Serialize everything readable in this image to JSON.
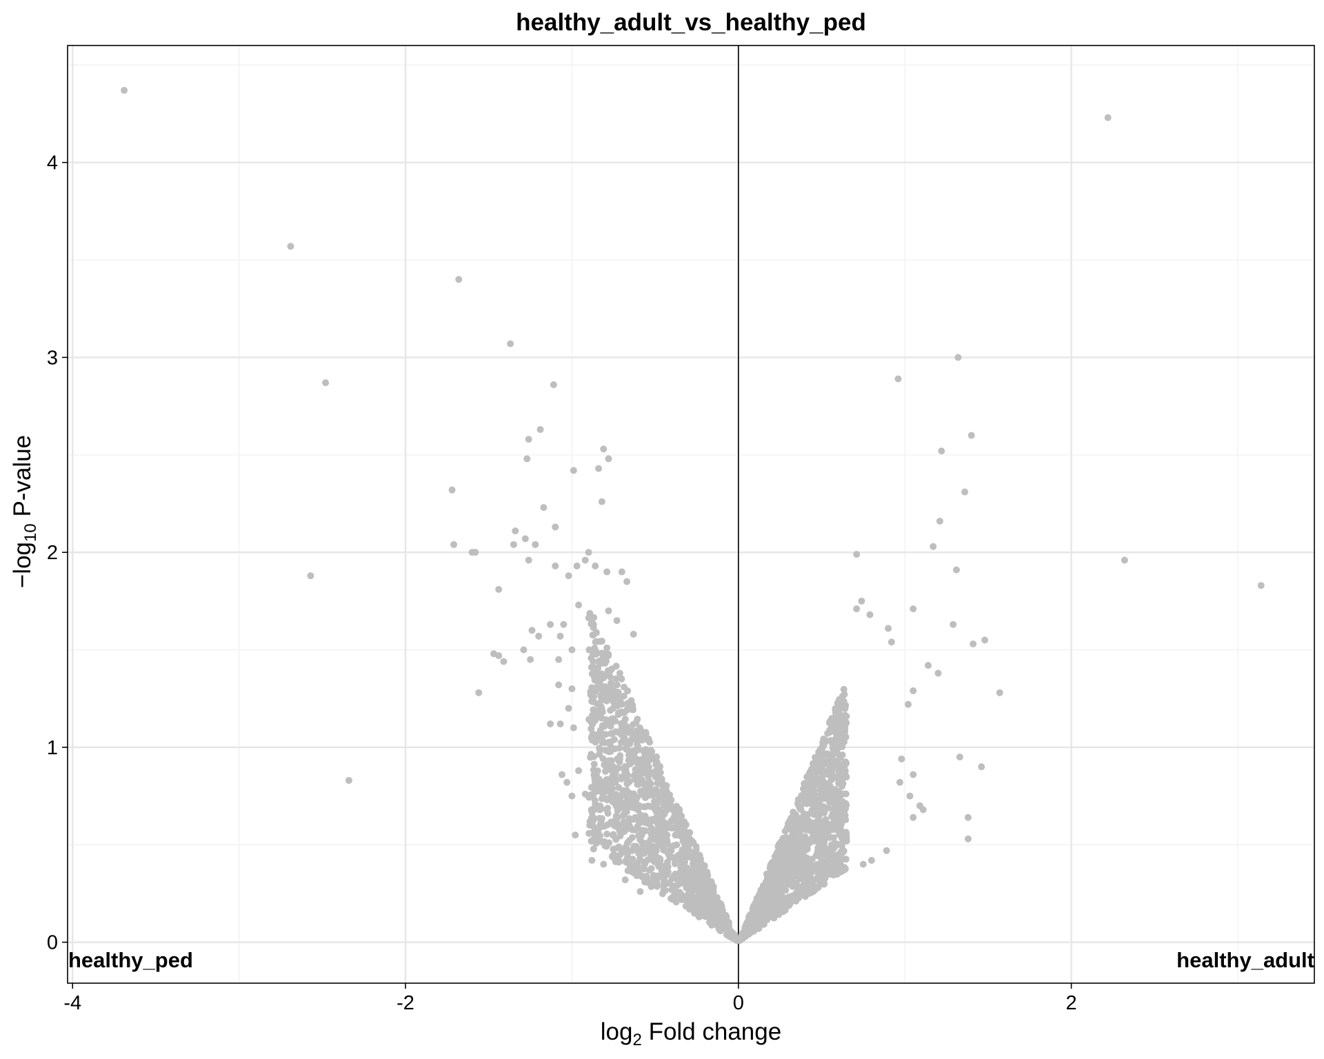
{
  "chart_data": {
    "type": "scatter",
    "title": "healthy_adult_vs_healthy_ped",
    "xlabel": {
      "prefix": "log",
      "sub": "2",
      "suffix": " Fold change"
    },
    "ylabel": {
      "prefix": "−log",
      "sub": "10",
      "suffix": " P-value"
    },
    "xlim": [
      -4.03,
      3.46
    ],
    "ylim": [
      -0.21,
      4.6
    ],
    "x_ticks": [
      -4,
      -2,
      0,
      2
    ],
    "x_tick_labels": [
      "-4",
      "-2",
      "0",
      "2"
    ],
    "y_ticks": [
      0,
      1,
      2,
      3,
      4
    ],
    "y_tick_labels": [
      "0",
      "1",
      "2",
      "3",
      "4"
    ],
    "grid": true,
    "vline_x": 0,
    "point_color": "#bebebe",
    "group_left": "healthy_ped",
    "group_right": "healthy_adult",
    "points": [
      [
        -3.69,
        4.37
      ],
      [
        -2.69,
        3.57
      ],
      [
        -2.48,
        2.87
      ],
      [
        -2.57,
        1.88
      ],
      [
        -2.34,
        0.83
      ],
      [
        -1.68,
        3.4
      ],
      [
        -1.72,
        2.32
      ],
      [
        -1.71,
        2.04
      ],
      [
        -1.6,
        2.0
      ],
      [
        -1.58,
        2.0
      ],
      [
        -1.44,
        1.81
      ],
      [
        -1.47,
        1.48
      ],
      [
        -1.44,
        1.47
      ],
      [
        -1.41,
        1.44
      ],
      [
        -1.37,
        3.07
      ],
      [
        -1.11,
        2.86
      ],
      [
        -1.19,
        2.63
      ],
      [
        -1.26,
        2.58
      ],
      [
        -1.27,
        2.48
      ],
      [
        -0.99,
        2.42
      ],
      [
        -0.81,
        2.53
      ],
      [
        -0.78,
        2.48
      ],
      [
        -0.84,
        2.43
      ],
      [
        -0.82,
        2.26
      ],
      [
        -1.17,
        2.23
      ],
      [
        -1.1,
        2.13
      ],
      [
        -1.34,
        2.11
      ],
      [
        -1.28,
        2.07
      ],
      [
        -1.35,
        2.04
      ],
      [
        -1.22,
        2.04
      ],
      [
        -0.9,
        2.0
      ],
      [
        -0.92,
        1.96
      ],
      [
        -1.26,
        1.96
      ],
      [
        -1.1,
        1.93
      ],
      [
        -0.97,
        1.93
      ],
      [
        -1.02,
        1.88
      ],
      [
        -0.86,
        1.93
      ],
      [
        -0.79,
        1.9
      ],
      [
        -0.7,
        1.9
      ],
      [
        -0.67,
        1.85
      ],
      [
        -0.96,
        1.73
      ],
      [
        -1.05,
        1.63
      ],
      [
        -1.13,
        1.63
      ],
      [
        -1.2,
        1.57
      ],
      [
        -1.24,
        1.6
      ],
      [
        -1.29,
        1.5
      ],
      [
        -1.25,
        1.45
      ],
      [
        -1.07,
        1.57
      ],
      [
        -1.0,
        1.5
      ],
      [
        -0.78,
        1.7
      ],
      [
        -0.73,
        1.65
      ],
      [
        -1.08,
        1.45
      ],
      [
        -0.82,
        1.45
      ],
      [
        -0.63,
        1.58
      ],
      [
        -1.08,
        1.32
      ],
      [
        -1.0,
        1.3
      ],
      [
        -1.02,
        1.2
      ],
      [
        -1.13,
        1.12
      ],
      [
        -1.07,
        1.12
      ],
      [
        -0.99,
        1.1
      ],
      [
        -1.06,
        0.86
      ],
      [
        -0.96,
        0.88
      ],
      [
        -1.03,
        0.82
      ],
      [
        -1.0,
        0.75
      ],
      [
        -0.98,
        0.55
      ],
      [
        -0.92,
        0.76
      ],
      [
        -0.88,
        0.42
      ],
      [
        -0.81,
        0.4
      ],
      [
        -0.68,
        0.32
      ],
      [
        -0.59,
        0.26
      ],
      [
        -1.56,
        1.28
      ],
      [
        1.4,
        2.6
      ],
      [
        1.32,
        3.0
      ],
      [
        0.96,
        2.89
      ],
      [
        1.22,
        2.52
      ],
      [
        1.36,
        2.31
      ],
      [
        1.21,
        2.16
      ],
      [
        1.17,
        2.03
      ],
      [
        1.31,
        1.91
      ],
      [
        2.22,
        4.23
      ],
      [
        2.32,
        1.96
      ],
      [
        3.14,
        1.83
      ],
      [
        0.71,
        1.99
      ],
      [
        0.74,
        1.75
      ],
      [
        0.71,
        1.71
      ],
      [
        0.79,
        1.68
      ],
      [
        0.9,
        1.61
      ],
      [
        1.05,
        1.71
      ],
      [
        0.92,
        1.54
      ],
      [
        1.29,
        1.63
      ],
      [
        1.48,
        1.55
      ],
      [
        1.41,
        1.53
      ],
      [
        1.57,
        1.28
      ],
      [
        1.14,
        1.42
      ],
      [
        1.2,
        1.38
      ],
      [
        1.46,
        0.9
      ],
      [
        1.33,
        0.95
      ],
      [
        1.38,
        0.64
      ],
      [
        1.38,
        0.53
      ],
      [
        1.05,
        0.86
      ],
      [
        1.05,
        1.29
      ],
      [
        1.02,
        1.22
      ],
      [
        0.98,
        0.94
      ],
      [
        0.97,
        0.82
      ],
      [
        1.03,
        0.75
      ],
      [
        1.09,
        0.7
      ],
      [
        1.11,
        0.68
      ],
      [
        1.05,
        0.64
      ],
      [
        0.89,
        0.47
      ],
      [
        0.8,
        0.42
      ],
      [
        0.75,
        0.4
      ]
    ]
  }
}
